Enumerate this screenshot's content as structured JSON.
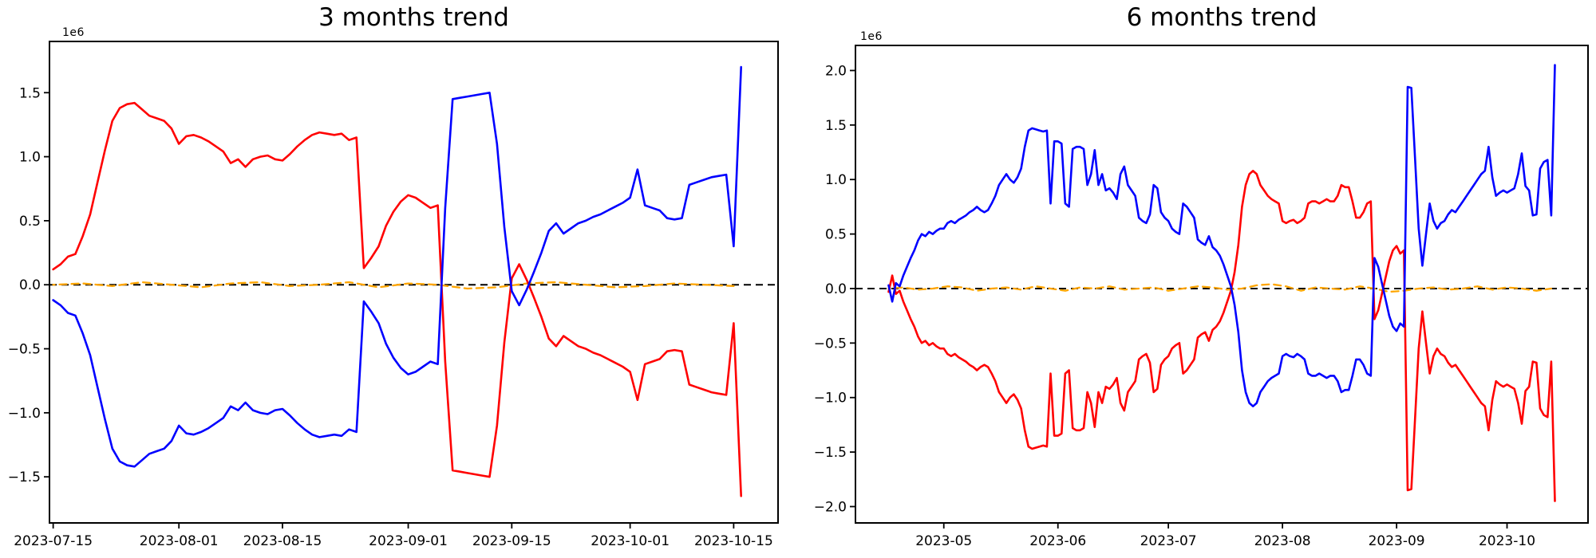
{
  "figure": {
    "background": "#ffffff"
  },
  "chart_data": [
    {
      "type": "line",
      "title": "3 months trend",
      "offset_text": "1e6",
      "x_start_date": "2023-07-15",
      "x_step": "1 day",
      "xlim_days": [
        -0.5,
        98
      ],
      "ylim": [
        -1.86,
        1.9
      ],
      "y_scale": "1e6",
      "grid": false,
      "legend": "none",
      "xticks": [
        {
          "d": 0,
          "label": "2023-07-15"
        },
        {
          "d": 17,
          "label": "2023-08-01"
        },
        {
          "d": 31,
          "label": "2023-08-15"
        },
        {
          "d": 48,
          "label": "2023-09-01"
        },
        {
          "d": 62,
          "label": "2023-09-15"
        },
        {
          "d": 78,
          "label": "2023-10-01"
        },
        {
          "d": 92,
          "label": "2023-10-15"
        }
      ],
      "yticks": [
        {
          "v": -1.5,
          "label": "−1.5"
        },
        {
          "v": -1.0,
          "label": "−1.0"
        },
        {
          "v": -0.5,
          "label": "−0.5"
        },
        {
          "v": 0.0,
          "label": "0.0"
        },
        {
          "v": 0.5,
          "label": "0.5"
        },
        {
          "v": 1.0,
          "label": "1.0"
        },
        {
          "v": 1.5,
          "label": "1.5"
        }
      ],
      "zero_line": {
        "color": "#000000",
        "style": "dashed"
      },
      "series": [
        {
          "id": "red-line",
          "color": "#ff0000",
          "style": "solid",
          "step": 1,
          "values": [
            0.12,
            0.16,
            0.22,
            0.24,
            0.38,
            0.55,
            0.8,
            1.05,
            1.28,
            1.38,
            1.41,
            1.42,
            1.37,
            1.32,
            1.3,
            1.28,
            1.22,
            1.1,
            1.16,
            1.17,
            1.15,
            1.12,
            1.08,
            1.04,
            0.95,
            0.98,
            0.92,
            0.98,
            1.0,
            1.01,
            0.98,
            0.97,
            1.02,
            1.08,
            1.13,
            1.17,
            1.19,
            1.18,
            1.17,
            1.18,
            1.13,
            1.15,
            0.13,
            0.21,
            0.3,
            0.46,
            0.57,
            0.65,
            0.7,
            0.68,
            0.64,
            0.6,
            0.62,
            -0.6,
            -1.45,
            -1.46,
            -1.47,
            -1.48,
            -1.49,
            -1.5,
            -1.1,
            -0.45,
            0.05,
            0.16,
            0.04,
            -0.1,
            -0.25,
            -0.42,
            -0.48,
            -0.4,
            -0.44,
            -0.48,
            -0.5,
            -0.53,
            -0.55,
            -0.58,
            -0.61,
            -0.64,
            -0.68,
            -0.9,
            -0.62,
            -0.6,
            -0.58,
            -0.52,
            -0.51,
            -0.52,
            -0.78,
            -0.8,
            -0.82,
            -0.84,
            -0.85,
            -0.86,
            -0.3,
            -1.65
          ]
        },
        {
          "id": "blue-line",
          "color": "#0000ff",
          "style": "solid",
          "step": 1,
          "values": [
            -0.12,
            -0.16,
            -0.22,
            -0.24,
            -0.38,
            -0.55,
            -0.8,
            -1.05,
            -1.28,
            -1.38,
            -1.41,
            -1.42,
            -1.37,
            -1.32,
            -1.3,
            -1.28,
            -1.22,
            -1.1,
            -1.16,
            -1.17,
            -1.15,
            -1.12,
            -1.08,
            -1.04,
            -0.95,
            -0.98,
            -0.92,
            -0.98,
            -1.0,
            -1.01,
            -0.98,
            -0.97,
            -1.02,
            -1.08,
            -1.13,
            -1.17,
            -1.19,
            -1.18,
            -1.17,
            -1.18,
            -1.13,
            -1.15,
            -0.13,
            -0.21,
            -0.3,
            -0.46,
            -0.57,
            -0.65,
            -0.7,
            -0.68,
            -0.64,
            -0.6,
            -0.62,
            0.6,
            1.45,
            1.46,
            1.47,
            1.48,
            1.49,
            1.5,
            1.1,
            0.45,
            -0.05,
            -0.16,
            -0.04,
            0.1,
            0.25,
            0.42,
            0.48,
            0.4,
            0.44,
            0.48,
            0.5,
            0.53,
            0.55,
            0.58,
            0.61,
            0.64,
            0.68,
            0.9,
            0.62,
            0.6,
            0.58,
            0.52,
            0.51,
            0.52,
            0.78,
            0.8,
            0.82,
            0.84,
            0.85,
            0.86,
            0.3,
            1.7
          ]
        },
        {
          "id": "orange-line",
          "color": "#ffa500",
          "style": "dashed",
          "step": 4,
          "values": [
            0.0,
            0.01,
            -0.01,
            0.02,
            0.0,
            -0.02,
            0.01,
            0.02,
            -0.01,
            0.0,
            0.02,
            -0.02,
            0.01,
            0.0,
            -0.03,
            -0.02,
            0.01,
            0.02,
            0.0,
            -0.02,
            -0.01,
            0.01,
            0.0,
            -0.01
          ]
        }
      ]
    },
    {
      "type": "line",
      "title": "6 months trend",
      "offset_text": "1e6",
      "x_start_date": "2023-04-16",
      "x_step": "1 day",
      "xlim_days": [
        -9,
        190
      ],
      "ylim": [
        -2.15,
        2.23
      ],
      "y_scale": "1e6",
      "grid": false,
      "legend": "none",
      "xticks": [
        {
          "d": 15,
          "label": "2023-05"
        },
        {
          "d": 46,
          "label": "2023-06"
        },
        {
          "d": 76,
          "label": "2023-07"
        },
        {
          "d": 107,
          "label": "2023-08"
        },
        {
          "d": 138,
          "label": "2023-09"
        },
        {
          "d": 168,
          "label": "2023-10"
        }
      ],
      "yticks": [
        {
          "v": -2.0,
          "label": "−2.0"
        },
        {
          "v": -1.5,
          "label": "−1.5"
        },
        {
          "v": -1.0,
          "label": "−1.0"
        },
        {
          "v": -0.5,
          "label": "−0.5"
        },
        {
          "v": 0.0,
          "label": "0.0"
        },
        {
          "v": 0.5,
          "label": "0.5"
        },
        {
          "v": 1.0,
          "label": "1.0"
        },
        {
          "v": 1.5,
          "label": "1.5"
        },
        {
          "v": 2.0,
          "label": "2.0"
        }
      ],
      "zero_line": {
        "color": "#000000",
        "style": "dashed"
      },
      "series": [
        {
          "id": "red-line",
          "color": "#ff0000",
          "style": "solid",
          "step": 1,
          "values": [
            -0.03,
            0.12,
            -0.05,
            -0.02,
            -0.12,
            -0.2,
            -0.28,
            -0.35,
            -0.44,
            -0.5,
            -0.48,
            -0.52,
            -0.5,
            -0.53,
            -0.55,
            -0.55,
            -0.6,
            -0.62,
            -0.6,
            -0.63,
            -0.65,
            -0.67,
            -0.7,
            -0.72,
            -0.75,
            -0.72,
            -0.7,
            -0.72,
            -0.78,
            -0.85,
            -0.95,
            -1.0,
            -1.05,
            -1.0,
            -0.97,
            -1.02,
            -1.1,
            -1.3,
            -1.45,
            -1.47,
            -1.46,
            -1.45,
            -1.44,
            -1.45,
            -0.78,
            -1.35,
            -1.35,
            -1.33,
            -0.78,
            -0.75,
            -1.28,
            -1.3,
            -1.3,
            -1.28,
            -0.95,
            -1.05,
            -1.27,
            -0.95,
            -1.05,
            -0.9,
            -0.92,
            -0.88,
            -0.82,
            -1.05,
            -1.12,
            -0.95,
            -0.9,
            -0.85,
            -0.65,
            -0.62,
            -0.6,
            -0.68,
            -0.95,
            -0.92,
            -0.7,
            -0.65,
            -0.62,
            -0.55,
            -0.52,
            -0.5,
            -0.78,
            -0.75,
            -0.7,
            -0.65,
            -0.45,
            -0.42,
            -0.4,
            -0.48,
            -0.38,
            -0.35,
            -0.3,
            -0.22,
            -0.12,
            -0.02,
            0.15,
            0.4,
            0.75,
            0.95,
            1.05,
            1.08,
            1.05,
            0.95,
            0.9,
            0.85,
            0.82,
            0.8,
            0.78,
            0.62,
            0.6,
            0.62,
            0.63,
            0.6,
            0.62,
            0.65,
            0.78,
            0.8,
            0.8,
            0.78,
            0.8,
            0.82,
            0.8,
            0.8,
            0.85,
            0.95,
            0.93,
            0.93,
            0.8,
            0.65,
            0.65,
            0.7,
            0.78,
            0.8,
            -0.28,
            -0.2,
            -0.05,
            0.1,
            0.25,
            0.35,
            0.39,
            0.32,
            0.35,
            -1.85,
            -1.84,
            -1.2,
            -0.55,
            -0.21,
            -0.5,
            -0.78,
            -0.62,
            -0.55,
            -0.6,
            -0.62,
            -0.68,
            -0.72,
            -0.7,
            -0.75,
            -0.8,
            -0.85,
            -0.9,
            -0.95,
            -1.0,
            -1.05,
            -1.08,
            -1.3,
            -1.02,
            -0.85,
            -0.88,
            -0.9,
            -0.88,
            -0.9,
            -0.92,
            -1.05,
            -1.24,
            -0.94,
            -0.9,
            -0.67,
            -0.68,
            -1.1,
            -1.16,
            -1.18,
            -0.67,
            -1.95
          ]
        },
        {
          "id": "blue-line",
          "color": "#0000ff",
          "style": "solid",
          "step": 1,
          "values": [
            0.03,
            -0.12,
            0.05,
            0.02,
            0.12,
            0.2,
            0.28,
            0.35,
            0.44,
            0.5,
            0.48,
            0.52,
            0.5,
            0.53,
            0.55,
            0.55,
            0.6,
            0.62,
            0.6,
            0.63,
            0.65,
            0.67,
            0.7,
            0.72,
            0.75,
            0.72,
            0.7,
            0.72,
            0.78,
            0.85,
            0.95,
            1.0,
            1.05,
            1.0,
            0.97,
            1.02,
            1.1,
            1.3,
            1.45,
            1.47,
            1.46,
            1.45,
            1.44,
            1.45,
            0.78,
            1.35,
            1.35,
            1.33,
            0.78,
            0.75,
            1.28,
            1.3,
            1.3,
            1.28,
            0.95,
            1.05,
            1.27,
            0.95,
            1.05,
            0.9,
            0.92,
            0.88,
            0.82,
            1.05,
            1.12,
            0.95,
            0.9,
            0.85,
            0.65,
            0.62,
            0.6,
            0.68,
            0.95,
            0.92,
            0.7,
            0.65,
            0.62,
            0.55,
            0.52,
            0.5,
            0.78,
            0.75,
            0.7,
            0.65,
            0.45,
            0.42,
            0.4,
            0.48,
            0.38,
            0.35,
            0.3,
            0.22,
            0.12,
            0.02,
            -0.15,
            -0.4,
            -0.75,
            -0.95,
            -1.05,
            -1.08,
            -1.05,
            -0.95,
            -0.9,
            -0.85,
            -0.82,
            -0.8,
            -0.78,
            -0.62,
            -0.6,
            -0.62,
            -0.63,
            -0.6,
            -0.62,
            -0.65,
            -0.78,
            -0.8,
            -0.8,
            -0.78,
            -0.8,
            -0.82,
            -0.8,
            -0.8,
            -0.85,
            -0.95,
            -0.93,
            -0.93,
            -0.8,
            -0.65,
            -0.65,
            -0.7,
            -0.78,
            -0.8,
            0.28,
            0.2,
            0.05,
            -0.1,
            -0.25,
            -0.35,
            -0.39,
            -0.32,
            -0.35,
            1.85,
            1.84,
            1.2,
            0.55,
            0.21,
            0.5,
            0.78,
            0.62,
            0.55,
            0.6,
            0.62,
            0.68,
            0.72,
            0.7,
            0.75,
            0.8,
            0.85,
            0.9,
            0.95,
            1.0,
            1.05,
            1.08,
            1.3,
            1.02,
            0.85,
            0.88,
            0.9,
            0.88,
            0.9,
            0.92,
            1.05,
            1.24,
            0.94,
            0.9,
            0.67,
            0.68,
            1.1,
            1.16,
            1.18,
            0.67,
            2.05
          ]
        },
        {
          "id": "orange-line",
          "color": "#ffa500",
          "style": "dashed",
          "step": 4,
          "values": [
            0.0,
            0.01,
            -0.01,
            0.0,
            0.02,
            0.01,
            -0.02,
            0.0,
            0.01,
            -0.01,
            0.02,
            0.0,
            -0.02,
            0.01,
            0.0,
            0.02,
            -0.01,
            0.0,
            0.01,
            -0.02,
            0.0,
            0.02,
            0.01,
            -0.01,
            0.0,
            0.03,
            0.04,
            0.02,
            -0.02,
            0.01,
            0.0,
            -0.01,
            0.02,
            0.0,
            -0.03,
            -0.02,
            0.0,
            0.01,
            -0.01,
            0.0,
            0.02,
            -0.01,
            0.01,
            0.0,
            -0.02,
            0.0
          ]
        }
      ]
    }
  ]
}
